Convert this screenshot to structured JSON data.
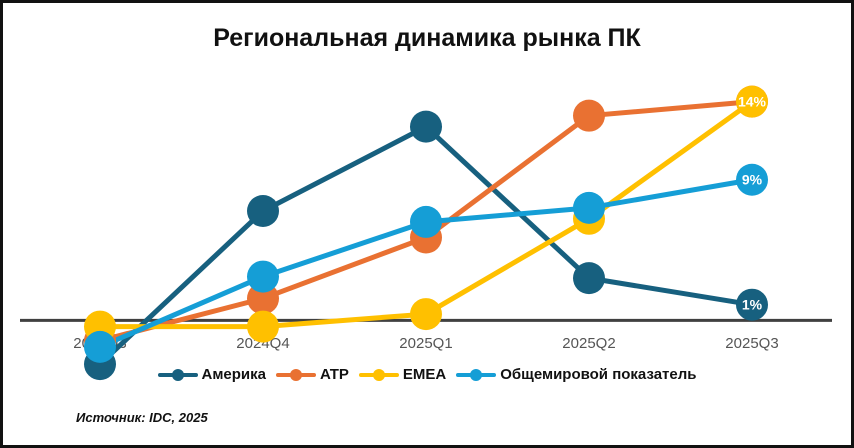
{
  "chart_data": {
    "type": "line",
    "title": "Региональная динамика рынка ПК",
    "categories": [
      "2024Q3",
      "2024Q4",
      "2025Q1",
      "2025Q2",
      "2025Q3"
    ],
    "ylim": [
      -3.5,
      15
    ],
    "grid": false,
    "legend": "bottom",
    "series": [
      {
        "name": "Америка",
        "color": "#17607f",
        "values": [
          -2.8,
          7.0,
          12.4,
          2.7,
          1
        ],
        "end_label": "1%"
      },
      {
        "name": "ATP",
        "color": "#e97132",
        "values": [
          -1.3,
          1.4,
          5.3,
          13.1,
          14
        ],
        "end_label": ""
      },
      {
        "name": "EMEA",
        "color": "#ffc000",
        "values": [
          -0.4,
          -0.4,
          0.4,
          6.5,
          14
        ],
        "end_label": "14%"
      },
      {
        "name": "Общемировой показатель",
        "color": "#159ed6",
        "values": [
          -1.7,
          2.8,
          6.3,
          7.2,
          9
        ],
        "end_label": "9%"
      }
    ],
    "source": "Источник: IDC, 2025"
  }
}
